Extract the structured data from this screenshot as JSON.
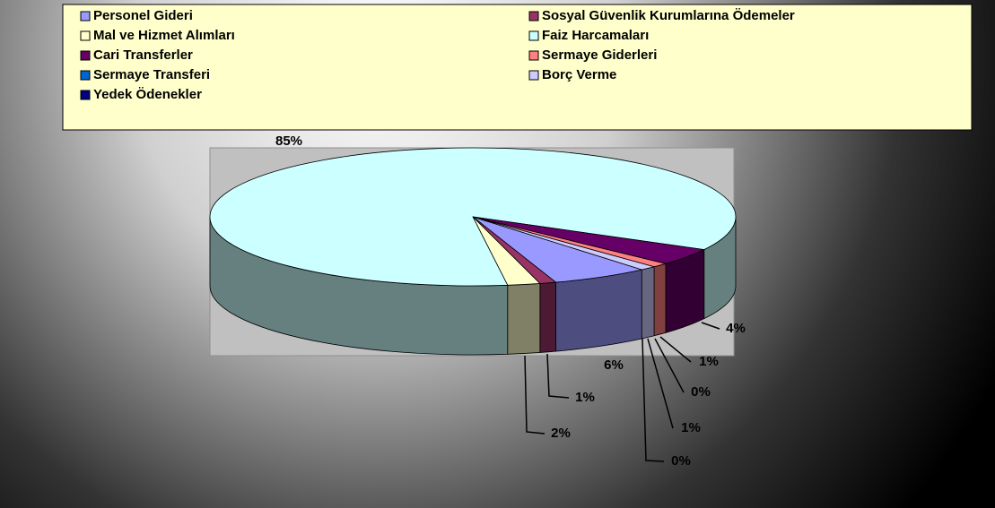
{
  "chart_data": {
    "type": "pie3d",
    "categories": [
      "Personel Gideri",
      "Sosyal Güvenlik Kurumlarına Ödemeler",
      "Mal ve Hizmet Alımları",
      "Faiz Harcamaları",
      "Cari Transferler",
      "Sermaye Giderleri",
      "Sermaye Transferi",
      "Borç Verme",
      "Yedek Ödenekler"
    ],
    "values": [
      6,
      1,
      2,
      85,
      4,
      1,
      0,
      1,
      0
    ],
    "value_labels": [
      "6%",
      "1%",
      "2%",
      "85%",
      "4%",
      "1%",
      "0%",
      "1%",
      "0%"
    ],
    "colors": [
      "#9999ff",
      "#993366",
      "#ffffcc",
      "#ccffff",
      "#660066",
      "#ff8080",
      "#0066cc",
      "#ccccff",
      "#000080"
    ],
    "legend": "top"
  }
}
